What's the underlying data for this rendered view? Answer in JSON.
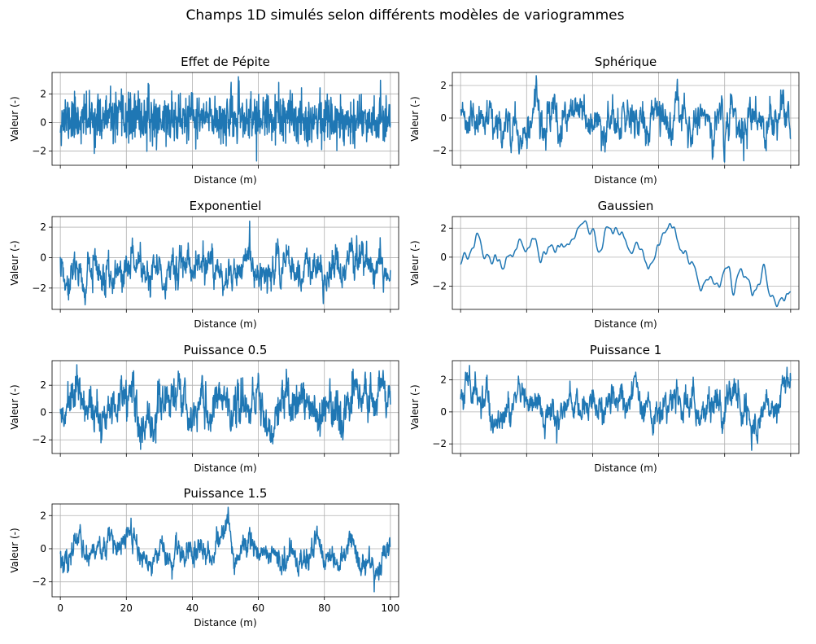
{
  "figure": {
    "title": "Champs 1D simulés selon différents modèles de variogrammes"
  },
  "style": {
    "line_color": "#1f77b4",
    "grid_color": "#b0b0b0",
    "axis_color": "#000000"
  },
  "chart_data": [
    {
      "type": "line",
      "title": "Effet de Pépite",
      "xlabel": "Distance (m)",
      "ylabel": "Valeur (-)",
      "xlim": [
        -2.5,
        102.5
      ],
      "ylim": [
        -3.0,
        3.5
      ],
      "yticks": [
        -2,
        0,
        2
      ],
      "xticks": [
        0,
        20,
        40,
        60,
        80,
        100
      ],
      "x_tick_labels": [],
      "y_tick_labels": [
        "−2",
        "0",
        "2"
      ],
      "series": [
        {
          "name": "Effet de Pépite",
          "model": "nugget",
          "n_points": 1000,
          "seed": 11,
          "amplitude": 1.0,
          "range": [
            -2.7,
            3.2
          ]
        }
      ]
    },
    {
      "type": "line",
      "title": "Sphérique",
      "xlabel": "Distance (m)",
      "ylabel": "Valeur (-)",
      "xlim": [
        -2.5,
        102.5
      ],
      "ylim": [
        -2.9,
        2.8
      ],
      "yticks": [
        -2,
        0,
        2
      ],
      "xticks": [
        0,
        20,
        40,
        60,
        80,
        100
      ],
      "x_tick_labels": [],
      "y_tick_labels": [
        "−2",
        "0",
        "2"
      ],
      "series": [
        {
          "name": "Sphérique",
          "model": "spherical",
          "n_points": 1000,
          "seed": 23,
          "smoothness": 0.8,
          "roughness": 0.35,
          "range": [
            -2.7,
            2.6
          ]
        }
      ]
    },
    {
      "type": "line",
      "title": "Exponentiel",
      "xlabel": "Distance (m)",
      "ylabel": "Valeur (-)",
      "xlim": [
        -2.5,
        102.5
      ],
      "ylim": [
        -3.4,
        2.7
      ],
      "yticks": [
        -2,
        0,
        2
      ],
      "xticks": [
        0,
        20,
        40,
        60,
        80,
        100
      ],
      "x_tick_labels": [],
      "y_tick_labels": [
        "−2",
        "0",
        "2"
      ],
      "series": [
        {
          "name": "Exponentiel",
          "model": "exponential",
          "n_points": 1000,
          "seed": 37,
          "smoothness": 0.9,
          "roughness": 0.45,
          "range": [
            -3.1,
            2.4
          ]
        }
      ]
    },
    {
      "type": "line",
      "title": "Gaussien",
      "xlabel": "Distance (m)",
      "ylabel": "Valeur (-)",
      "xlim": [
        -2.5,
        102.5
      ],
      "ylim": [
        -3.6,
        2.8
      ],
      "yticks": [
        -2,
        0,
        2
      ],
      "xticks": [
        0,
        20,
        40,
        60,
        80,
        100
      ],
      "x_tick_labels": [],
      "y_tick_labels": [
        "−2",
        "0",
        "2"
      ],
      "series": [
        {
          "name": "Gaussien",
          "model": "gaussian",
          "n_points": 1000,
          "seed": 51,
          "smoothness": 0.985,
          "roughness": 0.0,
          "range": [
            -3.4,
            2.5
          ]
        }
      ]
    },
    {
      "type": "line",
      "title": "Puissance 0.5",
      "xlabel": "Distance (m)",
      "ylabel": "Valeur (-)",
      "xlim": [
        -2.5,
        102.5
      ],
      "ylim": [
        -3.0,
        3.8
      ],
      "yticks": [
        -2,
        0,
        2
      ],
      "xticks": [
        0,
        20,
        40,
        60,
        80,
        100
      ],
      "x_tick_labels": [],
      "y_tick_labels": [
        "−2",
        "0",
        "2"
      ],
      "series": [
        {
          "name": "Puissance 0.5",
          "model": "power 0.5",
          "n_points": 1000,
          "seed": 67,
          "smoothness": 0.9,
          "roughness": 0.55,
          "range": [
            -2.7,
            3.5
          ]
        }
      ]
    },
    {
      "type": "line",
      "title": "Puissance 1",
      "xlabel": "Distance (m)",
      "ylabel": "Valeur (-)",
      "xlim": [
        -2.5,
        102.5
      ],
      "ylim": [
        -2.6,
        3.2
      ],
      "yticks": [
        -2,
        0,
        2
      ],
      "xticks": [
        0,
        20,
        40,
        60,
        80,
        100
      ],
      "x_tick_labels": [],
      "y_tick_labels": [
        "−2",
        "0",
        "2"
      ],
      "series": [
        {
          "name": "Puissance 1",
          "model": "power 1",
          "n_points": 1000,
          "seed": 79,
          "smoothness": 0.93,
          "roughness": 0.35,
          "range": [
            -2.4,
            2.9
          ]
        }
      ]
    },
    {
      "type": "line",
      "title": "Puissance 1.5",
      "xlabel": "Distance (m)",
      "ylabel": "Valeur (-)",
      "xlim": [
        -2.5,
        102.5
      ],
      "ylim": [
        -2.9,
        2.7
      ],
      "yticks": [
        -2,
        0,
        2
      ],
      "xticks": [
        0,
        20,
        40,
        60,
        80,
        100
      ],
      "x_tick_labels": [
        "0",
        "20",
        "40",
        "60",
        "80",
        "100"
      ],
      "y_tick_labels": [
        "−2",
        "0",
        "2"
      ],
      "series": [
        {
          "name": "Puissance 1.5",
          "model": "power 1.5",
          "n_points": 1000,
          "seed": 97,
          "smoothness": 0.96,
          "roughness": 0.3,
          "range": [
            -2.6,
            2.5
          ]
        }
      ]
    }
  ]
}
